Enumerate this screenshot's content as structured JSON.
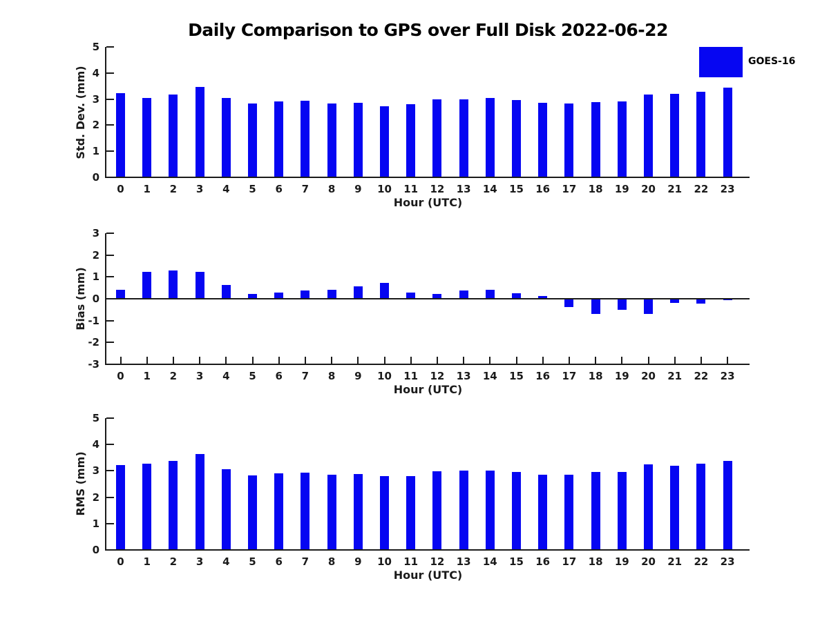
{
  "title": "Daily Comparison to GPS over Full Disk 2022-06-22",
  "legend": {
    "label": "GOES-16",
    "position": "top-right"
  },
  "colors": {
    "bar": "#0606F2",
    "axis": "#1a1a1a",
    "background": "#ffffff"
  },
  "chart_data": [
    {
      "type": "bar",
      "series_name": "GOES-16",
      "ylabel": "Std. Dev. (mm)",
      "xlabel": "Hour (UTC)",
      "ylim": [
        0,
        5
      ],
      "yticks": [
        0,
        1,
        2,
        3,
        4,
        5
      ],
      "grid": false,
      "categories": [
        "0",
        "1",
        "2",
        "3",
        "4",
        "5",
        "6",
        "7",
        "8",
        "9",
        "10",
        "11",
        "12",
        "13",
        "14",
        "15",
        "16",
        "17",
        "18",
        "19",
        "20",
        "21",
        "22",
        "23"
      ],
      "values": [
        3.22,
        3.05,
        3.18,
        3.46,
        3.05,
        2.83,
        2.9,
        2.94,
        2.83,
        2.86,
        2.72,
        2.8,
        2.98,
        3.0,
        3.03,
        2.96,
        2.87,
        2.82,
        2.88,
        2.9,
        3.17,
        3.2,
        3.28,
        3.44
      ]
    },
    {
      "type": "bar",
      "series_name": "GOES-16",
      "ylabel": "Bias (mm)",
      "xlabel": "Hour (UTC)",
      "ylim": [
        -3,
        3
      ],
      "yticks": [
        -3,
        -2,
        -1,
        0,
        1,
        2,
        3
      ],
      "zero_line": true,
      "grid": false,
      "categories": [
        "0",
        "1",
        "2",
        "3",
        "4",
        "5",
        "6",
        "7",
        "8",
        "9",
        "10",
        "11",
        "12",
        "13",
        "14",
        "15",
        "16",
        "17",
        "18",
        "19",
        "20",
        "21",
        "22",
        "23"
      ],
      "values": [
        0.42,
        1.24,
        1.31,
        1.24,
        0.63,
        0.21,
        0.28,
        0.38,
        0.42,
        0.58,
        0.74,
        0.3,
        0.21,
        0.39,
        0.42,
        0.26,
        0.13,
        -0.37,
        -0.7,
        -0.5,
        -0.68,
        -0.18,
        -0.21,
        -0.05
      ]
    },
    {
      "type": "bar",
      "series_name": "GOES-16",
      "ylabel": "RMS (mm)",
      "xlabel": "Hour (UTC)",
      "ylim": [
        0,
        5
      ],
      "yticks": [
        0,
        1,
        2,
        3,
        4,
        5
      ],
      "grid": false,
      "categories": [
        "0",
        "1",
        "2",
        "3",
        "4",
        "5",
        "6",
        "7",
        "8",
        "9",
        "10",
        "11",
        "12",
        "13",
        "14",
        "15",
        "16",
        "17",
        "18",
        "19",
        "20",
        "21",
        "22",
        "23"
      ],
      "values": [
        3.22,
        3.26,
        3.39,
        3.64,
        3.06,
        2.83,
        2.9,
        2.94,
        2.85,
        2.88,
        2.81,
        2.8,
        2.98,
        3.0,
        3.0,
        2.95,
        2.85,
        2.85,
        2.96,
        2.95,
        3.25,
        3.19,
        3.27,
        3.39
      ]
    }
  ]
}
